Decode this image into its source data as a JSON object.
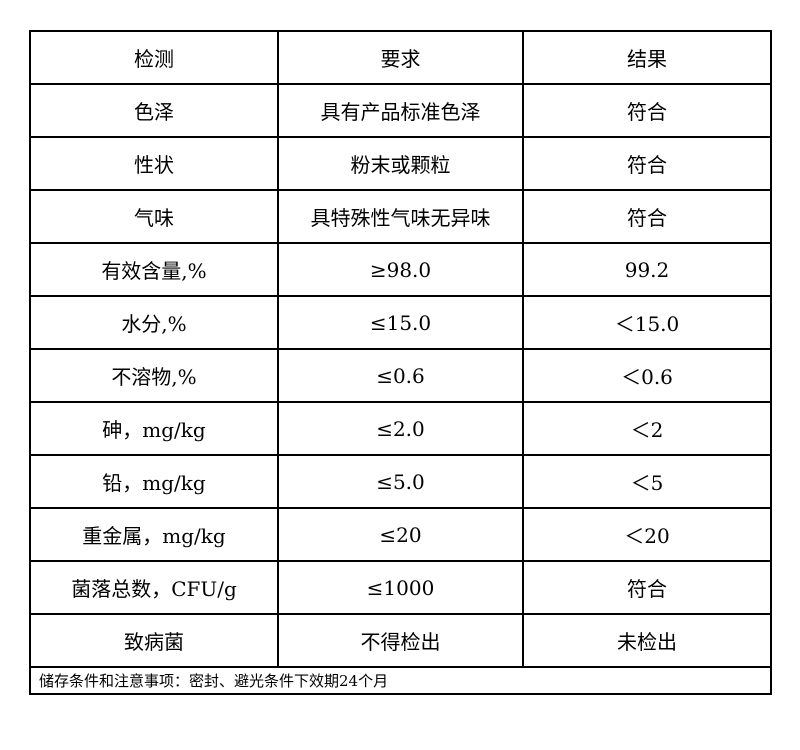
{
  "table": {
    "headers": [
      "检测",
      "要求",
      "结果"
    ],
    "rows": [
      [
        "色泽",
        "具有产品标准色泽",
        "符合"
      ],
      [
        "性状",
        "粉末或颗粒",
        "符合"
      ],
      [
        "气味",
        "具特殊性气味无异味",
        "符合"
      ],
      [
        "有效含量,%",
        "≥98.0",
        "99.2"
      ],
      [
        "水分,%",
        "≤15.0",
        "＜15.0"
      ],
      [
        "不溶物,%",
        "≤0.6",
        "＜0.6"
      ],
      [
        "砷，mg/kg",
        "≤2.0",
        "＜2"
      ],
      [
        "铅，mg/kg",
        "≤5.0",
        "＜5"
      ],
      [
        "重金属，mg/kg",
        "≤20",
        "＜20"
      ],
      [
        "菌落总数，CFU/g",
        "≤1000",
        "符合"
      ],
      [
        "致病菌",
        "不得检出",
        "未检出"
      ]
    ],
    "footer": "储存条件和注意事项：密封、避光条件下效期24个月"
  }
}
